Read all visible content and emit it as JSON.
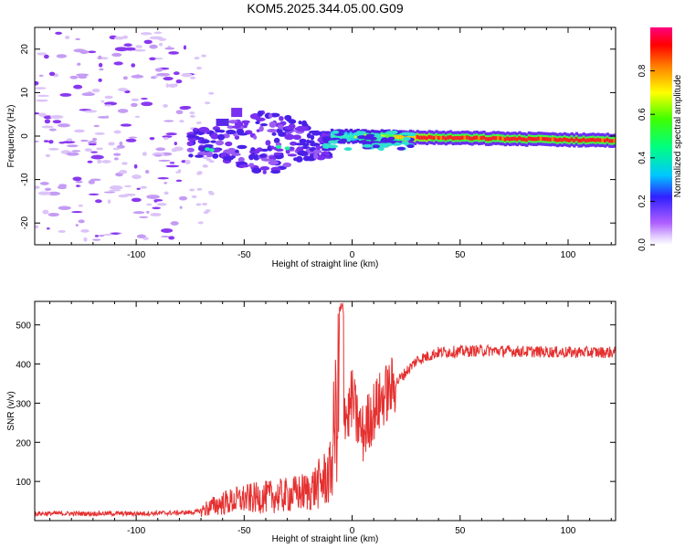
{
  "title": "KOM5.2025.344.05.00.G09",
  "chart_data": [
    {
      "type": "heatmap",
      "xlabel": "Height of straight line (km)",
      "ylabel": "Frequency (Hz)",
      "xlim": [
        -147,
        122
      ],
      "ylim": [
        -25,
        25
      ],
      "xticks": [
        -100,
        -50,
        0,
        50,
        100
      ],
      "yticks": [
        -20,
        -10,
        0,
        10,
        20
      ],
      "colorbar": {
        "label": "Normalized spectral amplitude",
        "range": [
          0,
          1
        ],
        "ticks": [
          "0.0",
          "0.2",
          "0.4",
          "0.6",
          "0.8"
        ],
        "tick_values": [
          0,
          0.2,
          0.4,
          0.6,
          0.8
        ]
      },
      "features": [
        {
          "name": "scattered noise",
          "x_range": [
            -147,
            -75
          ],
          "freq_range": [
            -24,
            24
          ],
          "amplitude": 0.05
        },
        {
          "name": "onset cluster",
          "x_range": [
            -75,
            -10
          ],
          "freq_range": [
            -8,
            6
          ],
          "amplitude": 0.12
        },
        {
          "name": "main signal",
          "x_range": [
            -10,
            122
          ],
          "freq_center": [
            0,
            -1
          ],
          "amplitude": 0.95
        }
      ]
    },
    {
      "type": "line",
      "xlabel": "Height of straight line (km)",
      "ylabel": "SNR (v/v)",
      "xlim": [
        -147,
        122
      ],
      "ylim": [
        0,
        560
      ],
      "xticks": [
        -100,
        -50,
        0,
        50,
        100
      ],
      "yticks": [
        100,
        200,
        300,
        400,
        500
      ],
      "series": [
        {
          "name": "SNR",
          "color": "#e53030",
          "x": [
            -147,
            -120,
            -100,
            -80,
            -72,
            -68,
            -60,
            -50,
            -40,
            -30,
            -20,
            -15,
            -10,
            -8,
            -6,
            -5,
            -4,
            -2,
            0,
            2,
            5,
            8,
            10,
            15,
            20,
            25,
            30,
            35,
            40,
            50,
            60,
            80,
            100,
            122
          ],
          "y": [
            18,
            18,
            18,
            20,
            22,
            30,
            45,
            55,
            60,
            65,
            75,
            95,
            120,
            250,
            340,
            555,
            300,
            260,
            320,
            260,
            220,
            260,
            280,
            320,
            350,
            380,
            410,
            420,
            430,
            432,
            435,
            432,
            430,
            430
          ]
        }
      ]
    }
  ]
}
